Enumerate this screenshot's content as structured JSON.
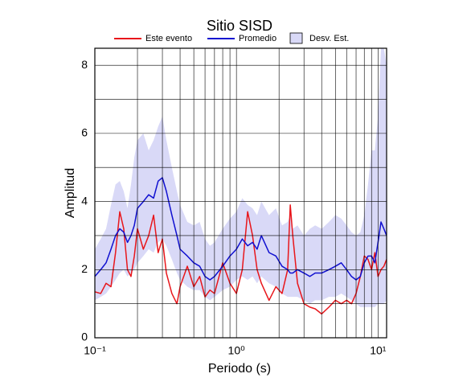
{
  "chart_data": {
    "type": "line",
    "title": "Sitio SISD",
    "xlabel": "Periodo (s)",
    "ylabel": "Amplitud",
    "xscale": "log",
    "xlim": [
      0.1,
      11.5
    ],
    "ylim": [
      0,
      8.5
    ],
    "xticks": [
      {
        "value": 0.1,
        "label": "10⁻¹"
      },
      {
        "value": 1,
        "label": "10⁰"
      },
      {
        "value": 10,
        "label": "10¹"
      }
    ],
    "xminor": [
      0.2,
      0.3,
      0.4,
      0.5,
      0.6,
      0.7,
      0.8,
      0.9,
      2,
      3,
      4,
      5,
      6,
      7,
      8,
      9
    ],
    "yticks": [
      0,
      2,
      4,
      6,
      8
    ],
    "yminor": [
      1,
      3,
      5,
      7
    ],
    "grid": true,
    "x": [
      0.1,
      0.11,
      0.12,
      0.13,
      0.14,
      0.15,
      0.16,
      0.17,
      0.18,
      0.19,
      0.2,
      0.22,
      0.24,
      0.26,
      0.28,
      0.3,
      0.32,
      0.35,
      0.38,
      0.4,
      0.45,
      0.5,
      0.55,
      0.6,
      0.65,
      0.7,
      0.8,
      0.9,
      1.0,
      1.1,
      1.2,
      1.3,
      1.4,
      1.5,
      1.7,
      1.9,
      2.1,
      2.3,
      2.4,
      2.5,
      2.7,
      3.0,
      3.3,
      3.6,
      4.0,
      4.5,
      5,
      5.5,
      6,
      6.5,
      7,
      7.5,
      8,
      8.5,
      9,
      9.5,
      10,
      10.5,
      11,
      11.5
    ],
    "band": {
      "name": "Desv. Est.",
      "color": "#d9d9f7",
      "upper": [
        2.6,
        2.9,
        3.2,
        3.9,
        4.5,
        4.6,
        4.3,
        3.8,
        4.5,
        5.3,
        5.8,
        6.0,
        5.5,
        5.8,
        6.2,
        6.5,
        5.8,
        5.0,
        4.3,
        3.9,
        3.4,
        3.3,
        3.4,
        2.9,
        2.7,
        2.8,
        3.2,
        3.5,
        3.7,
        4.1,
        3.9,
        3.8,
        3.6,
        4.0,
        3.6,
        3.8,
        3.3,
        3.4,
        3.6,
        3.2,
        3.3,
        3.0,
        3.2,
        3.3,
        3.2,
        3.4,
        3.6,
        3.5,
        3.3,
        3.1,
        3.0,
        3.1,
        3.6,
        4.5,
        5.5,
        5.5,
        6.5,
        8.5,
        8.5,
        8.0
      ],
      "lower": [
        1.1,
        1.2,
        1.3,
        1.5,
        1.7,
        1.9,
        2.0,
        1.8,
        1.9,
        2.0,
        2.2,
        2.4,
        2.6,
        2.5,
        2.8,
        2.9,
        2.7,
        2.3,
        1.9,
        1.7,
        1.5,
        1.4,
        1.4,
        1.2,
        1.1,
        1.2,
        1.4,
        1.5,
        1.7,
        1.8,
        1.7,
        1.8,
        1.6,
        1.8,
        1.6,
        1.5,
        1.3,
        1.2,
        1.2,
        1.2,
        1.2,
        1.1,
        1.0,
        1.1,
        1.1,
        1.2,
        1.2,
        1.3,
        1.2,
        1.1,
        1.0,
        0.9,
        0.9,
        0.9,
        0.9,
        0.9,
        1.0,
        1.0,
        1.0,
        1.1
      ]
    },
    "series": [
      {
        "name": "Este evento",
        "color": "#e8161b",
        "values": [
          1.35,
          1.3,
          1.6,
          1.5,
          2.5,
          3.7,
          3.2,
          2.0,
          1.8,
          2.4,
          3.2,
          2.6,
          3.0,
          3.6,
          2.5,
          2.9,
          1.9,
          1.3,
          1.0,
          1.5,
          2.1,
          1.5,
          1.8,
          1.2,
          1.4,
          1.3,
          2.2,
          1.6,
          1.3,
          2.0,
          3.7,
          3.0,
          2.0,
          1.6,
          1.1,
          1.5,
          1.3,
          2.0,
          3.9,
          3.0,
          1.6,
          1.0,
          0.9,
          0.85,
          0.7,
          0.9,
          1.1,
          1.0,
          1.1,
          1.0,
          1.3,
          1.8,
          2.4,
          2.3,
          2.0,
          2.5,
          1.8,
          2.0,
          2.1,
          2.3
        ]
      },
      {
        "name": "Promedio",
        "color": "#1010d0",
        "values": [
          1.8,
          2.0,
          2.2,
          2.6,
          3.0,
          3.2,
          3.1,
          2.8,
          3.0,
          3.3,
          3.8,
          4.0,
          4.2,
          4.1,
          4.6,
          4.7,
          4.3,
          3.6,
          3.0,
          2.6,
          2.4,
          2.2,
          2.1,
          1.8,
          1.7,
          1.8,
          2.1,
          2.4,
          2.6,
          2.9,
          2.7,
          2.8,
          2.6,
          3.0,
          2.5,
          2.4,
          2.1,
          2.0,
          1.9,
          1.9,
          2.0,
          1.9,
          1.8,
          1.9,
          1.9,
          2.0,
          2.1,
          2.2,
          2.0,
          1.8,
          1.7,
          1.8,
          2.2,
          2.4,
          2.4,
          2.2,
          2.8,
          3.4,
          3.2,
          3.0
        ]
      }
    ]
  }
}
